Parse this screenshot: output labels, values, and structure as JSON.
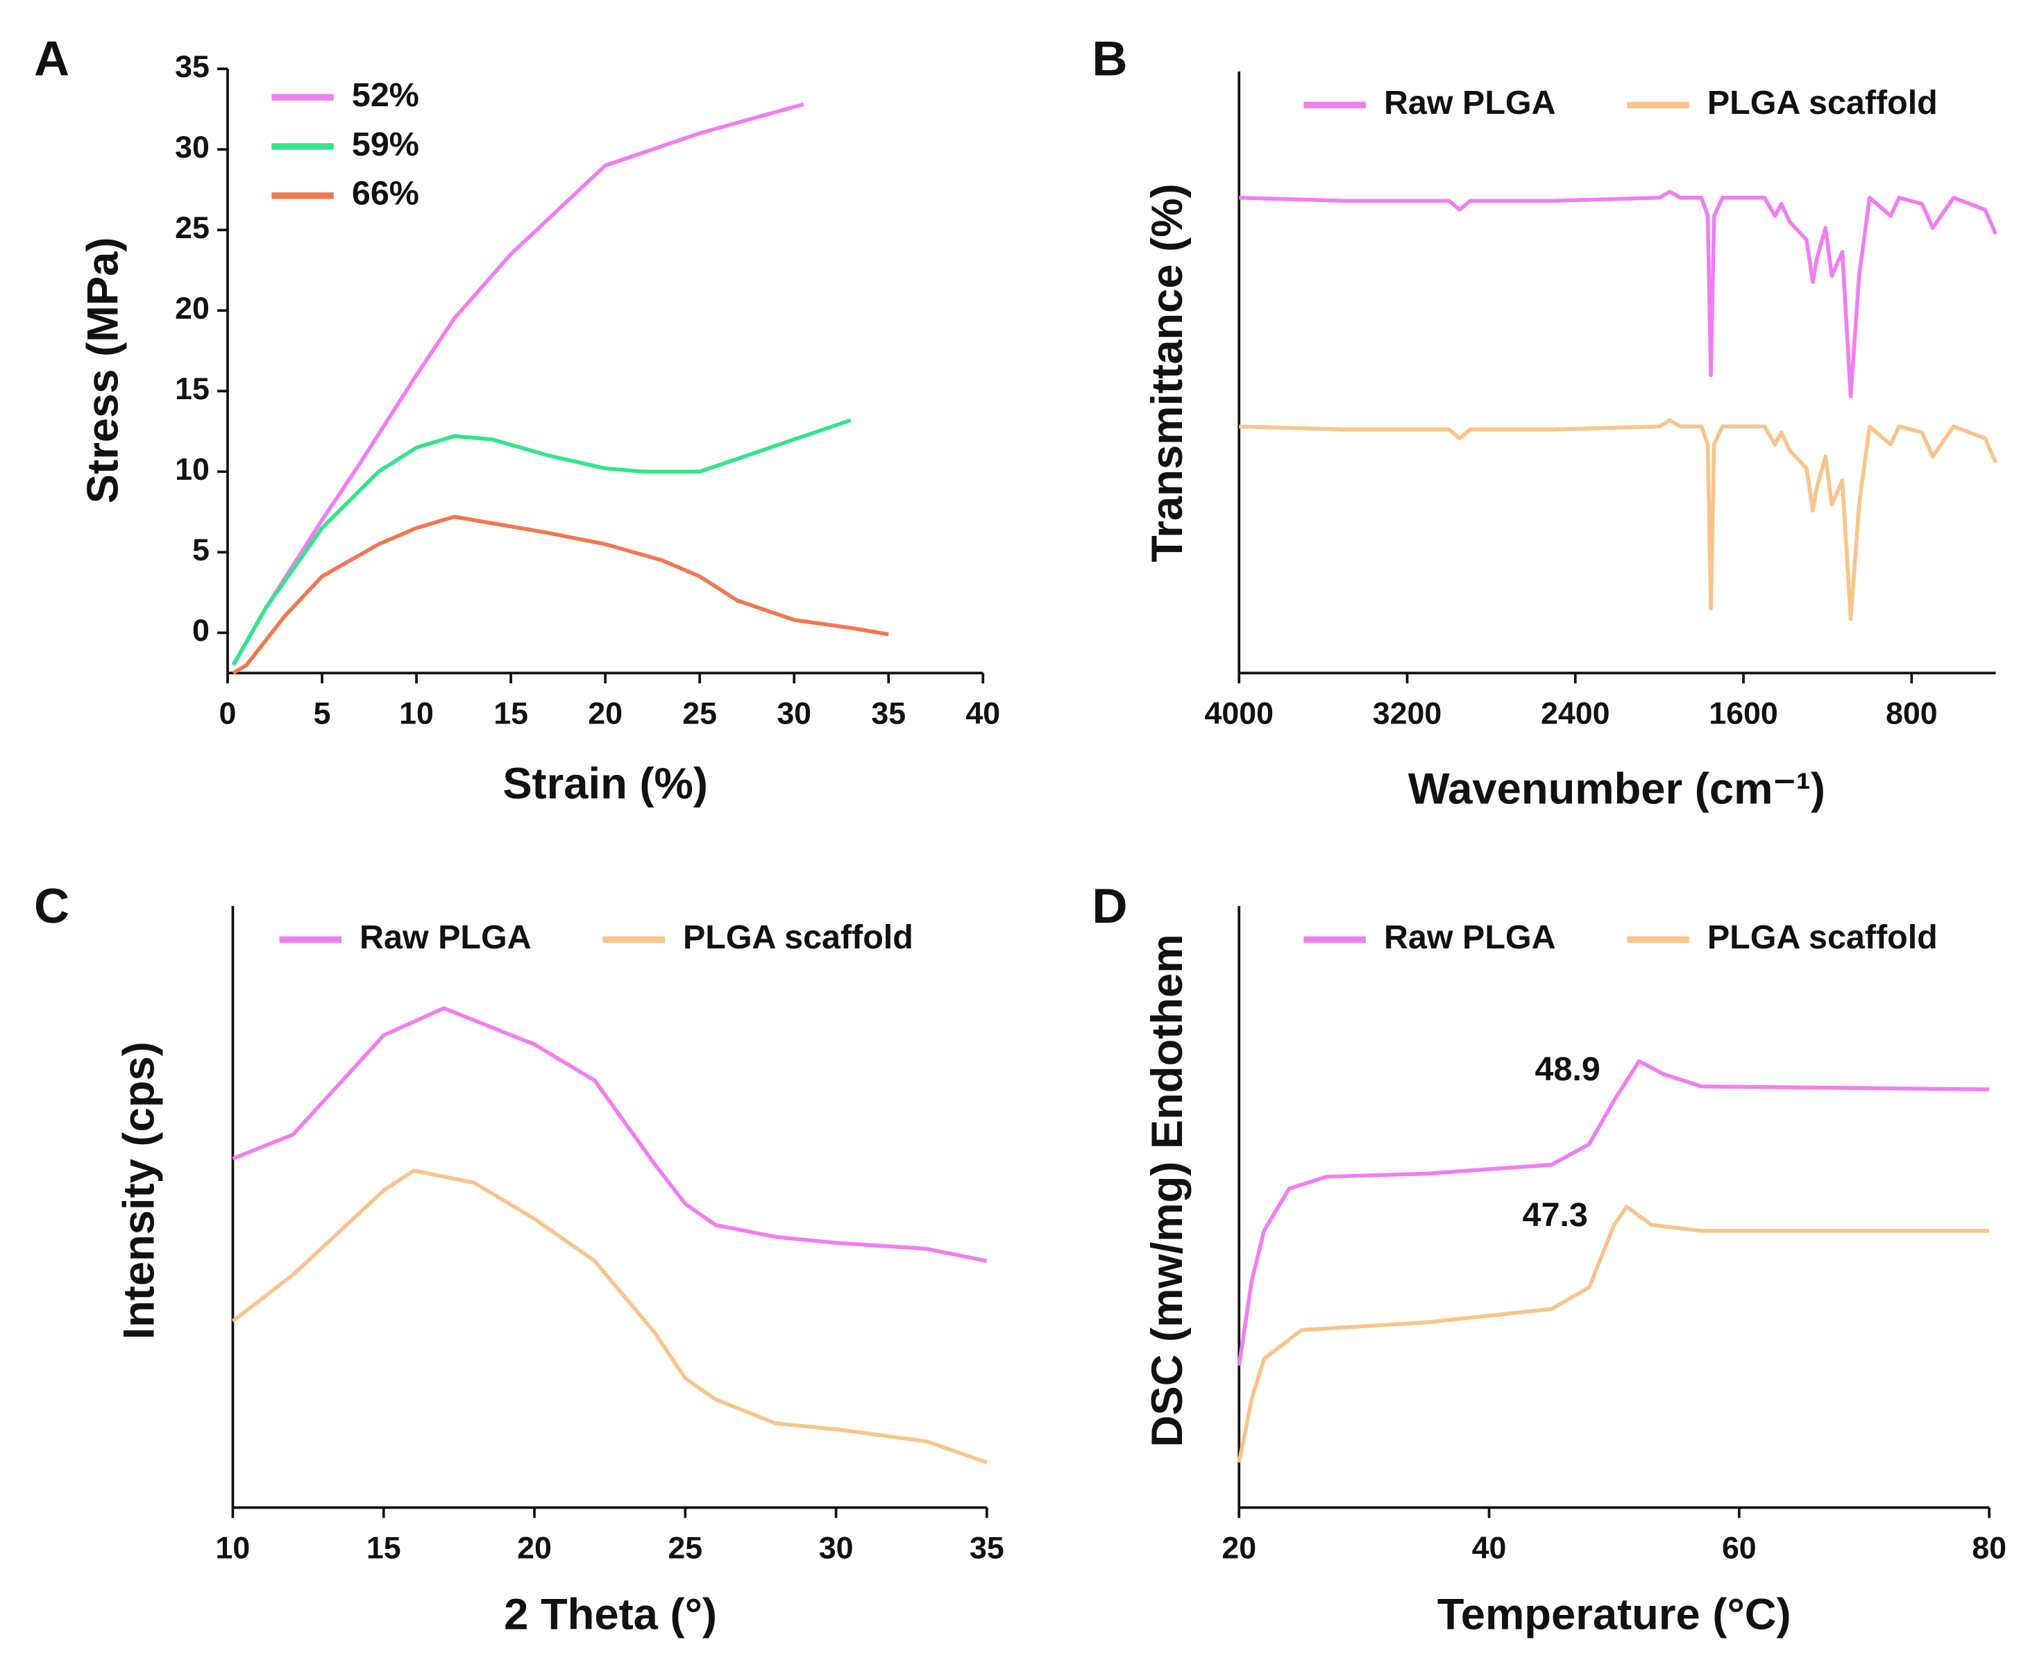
{
  "chart_data": [
    {
      "type": "line",
      "label": "A",
      "x_label": "Strain (%)",
      "y_label": "Stress (MPa)",
      "xlim": [
        0,
        40
      ],
      "ylim": [
        -2.5,
        35
      ],
      "xticks": [
        0,
        5,
        10,
        15,
        20,
        25,
        30,
        35,
        40
      ],
      "yticks": [
        0,
        5,
        10,
        15,
        20,
        25,
        30,
        35
      ],
      "legend": "upper left",
      "series": [
        {
          "name": "52%",
          "color": "#f07ef0",
          "x": [
            0.3,
            2,
            5,
            7,
            10,
            12,
            15,
            20,
            25,
            30.5
          ],
          "values": [
            -2,
            1.5,
            7,
            10.5,
            16,
            19.5,
            23.5,
            29,
            31,
            32.8
          ]
        },
        {
          "name": "59%",
          "color": "#33e58a",
          "x": [
            0.3,
            2,
            5,
            8,
            10,
            12,
            14,
            17,
            20,
            22,
            25,
            27,
            30,
            33
          ],
          "values": [
            -2,
            1.5,
            6.5,
            10,
            11.5,
            12.2,
            12,
            11,
            10.2,
            10,
            10,
            10.8,
            12,
            13.2
          ]
        },
        {
          "name": "66%",
          "color": "#f07850",
          "x": [
            0.3,
            1,
            3,
            5,
            8,
            10,
            12,
            14,
            17,
            20,
            23,
            25,
            27,
            30,
            33,
            35
          ],
          "values": [
            -2.5,
            -2,
            1,
            3.5,
            5.5,
            6.5,
            7.2,
            6.8,
            6.2,
            5.5,
            4.5,
            3.5,
            2,
            0.8,
            0.3,
            -0.1
          ]
        }
      ]
    },
    {
      "type": "line",
      "label": "B",
      "x_label": "Wavenumber (cm⁻¹)",
      "y_label": "Transmittance (%)",
      "xlim": [
        4000,
        400
      ],
      "ylim": [
        0,
        100
      ],
      "xticks": [
        4000,
        3200,
        2400,
        1600,
        800
      ],
      "legend": "upper center",
      "series": [
        {
          "name": "Raw PLGA",
          "color": "#f07ef0",
          "x": [
            4000,
            3500,
            3000,
            2950,
            2900,
            2500,
            2000,
            1950,
            1900,
            1800,
            1770,
            1755,
            1740,
            1700,
            1500,
            1450,
            1420,
            1380,
            1300,
            1270,
            1250,
            1210,
            1180,
            1130,
            1090,
            1050,
            1000,
            900,
            860,
            750,
            700,
            600,
            450,
            400
          ],
          "values": [
            79,
            78.5,
            78.5,
            77,
            78.5,
            78.5,
            79,
            80,
            79,
            79,
            76,
            49.5,
            76,
            79,
            79,
            76,
            78,
            75,
            72,
            65,
            69,
            74,
            66,
            70,
            46,
            66,
            79,
            76,
            79,
            78,
            74,
            79,
            77,
            73
          ]
        },
        {
          "name": "PLGA scaffold",
          "color": "#f8c48a",
          "x": [
            4000,
            3500,
            3000,
            2950,
            2900,
            2500,
            2000,
            1950,
            1900,
            1800,
            1770,
            1755,
            1740,
            1700,
            1500,
            1450,
            1420,
            1380,
            1300,
            1270,
            1250,
            1210,
            1180,
            1130,
            1090,
            1050,
            1000,
            900,
            860,
            750,
            700,
            600,
            450,
            400
          ],
          "values": [
            41,
            40.5,
            40.5,
            39,
            40.5,
            40.5,
            41,
            42,
            41,
            41,
            38,
            10.7,
            38,
            41,
            41,
            38,
            40,
            37,
            34,
            27,
            31,
            36,
            28,
            32,
            9,
            28,
            41,
            38,
            41,
            40,
            36,
            41,
            39,
            35
          ]
        }
      ]
    },
    {
      "type": "line",
      "label": "C",
      "x_label": "2 Theta (°)",
      "y_label": "Intensity (cps)",
      "xlim": [
        10,
        35
      ],
      "ylim": [
        0,
        100
      ],
      "xticks": [
        10,
        15,
        20,
        25,
        30,
        35
      ],
      "legend": "upper center",
      "series": [
        {
          "name": "Raw PLGA",
          "color": "#f07ef0",
          "x": [
            10,
            12,
            15,
            17,
            20,
            22,
            24,
            25,
            26,
            28,
            30,
            33,
            35
          ],
          "values": [
            58,
            62,
            78.5,
            83,
            77,
            71,
            57,
            50.5,
            47,
            45,
            44,
            43,
            41
          ]
        },
        {
          "name": "PLGA scaffold",
          "color": "#f8c48a",
          "x": [
            10,
            12,
            15,
            16,
            18,
            20,
            22,
            24,
            25,
            26,
            28,
            30,
            33,
            35
          ],
          "values": [
            31,
            38.7,
            52.7,
            56,
            54,
            48,
            41,
            29,
            21.5,
            18,
            14,
            13,
            11,
            7.5
          ]
        }
      ]
    },
    {
      "type": "line",
      "label": "D",
      "x_label": "Temperature (°C)",
      "y_label": "DSC (mw/mg) Endothem",
      "xlim": [
        20,
        80
      ],
      "ylim": [
        0,
        100
      ],
      "xticks": [
        20,
        40,
        60,
        80
      ],
      "legend": "upper center",
      "annotations": [
        "48.9",
        "47.3"
      ],
      "series": [
        {
          "name": "Raw PLGA",
          "color": "#f07ef0",
          "x": [
            20,
            21,
            22,
            24,
            27,
            35,
            45,
            48,
            50,
            52,
            54,
            57,
            80
          ],
          "values": [
            23.6,
            37.6,
            46,
            53,
            55,
            55.5,
            57,
            60.4,
            67.7,
            74.2,
            72,
            70,
            69.5
          ]
        },
        {
          "name": "PLGA scaffold",
          "color": "#f8c48a",
          "x": [
            20,
            21,
            22,
            25,
            35,
            45,
            48,
            50,
            51,
            53,
            57,
            80
          ],
          "values": [
            7.5,
            18,
            24.7,
            29.5,
            30.8,
            33,
            36.6,
            47,
            50,
            47,
            46,
            46
          ]
        }
      ]
    }
  ]
}
